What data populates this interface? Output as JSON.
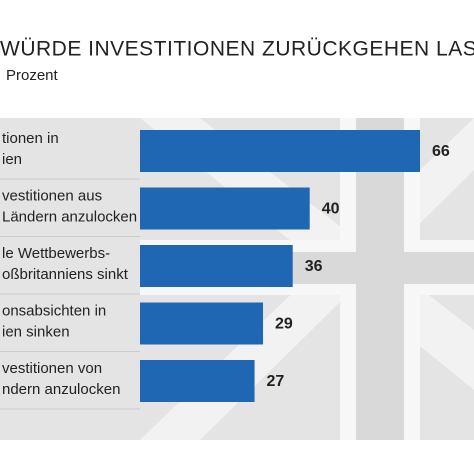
{
  "chart_data": {
    "type": "bar",
    "orientation": "horizontal",
    "title": "WÜRDE INVESTITIONEN ZURÜCKGEHEN LASSE",
    "subtitle": "Prozent",
    "categories": [
      [
        "tionen in",
        "ien"
      ],
      [
        "vestitionen aus",
        "Ländern anzulocken"
      ],
      [
        "le Wettbewerbs-",
        "oßbritanniens sinkt"
      ],
      [
        "onsabsichten in",
        "ien sinken"
      ],
      [
        "vestitionen von",
        "ndern anzulocken"
      ]
    ],
    "values": [
      66,
      40,
      36,
      29,
      27
    ],
    "color": "#1f66b3"
  }
}
